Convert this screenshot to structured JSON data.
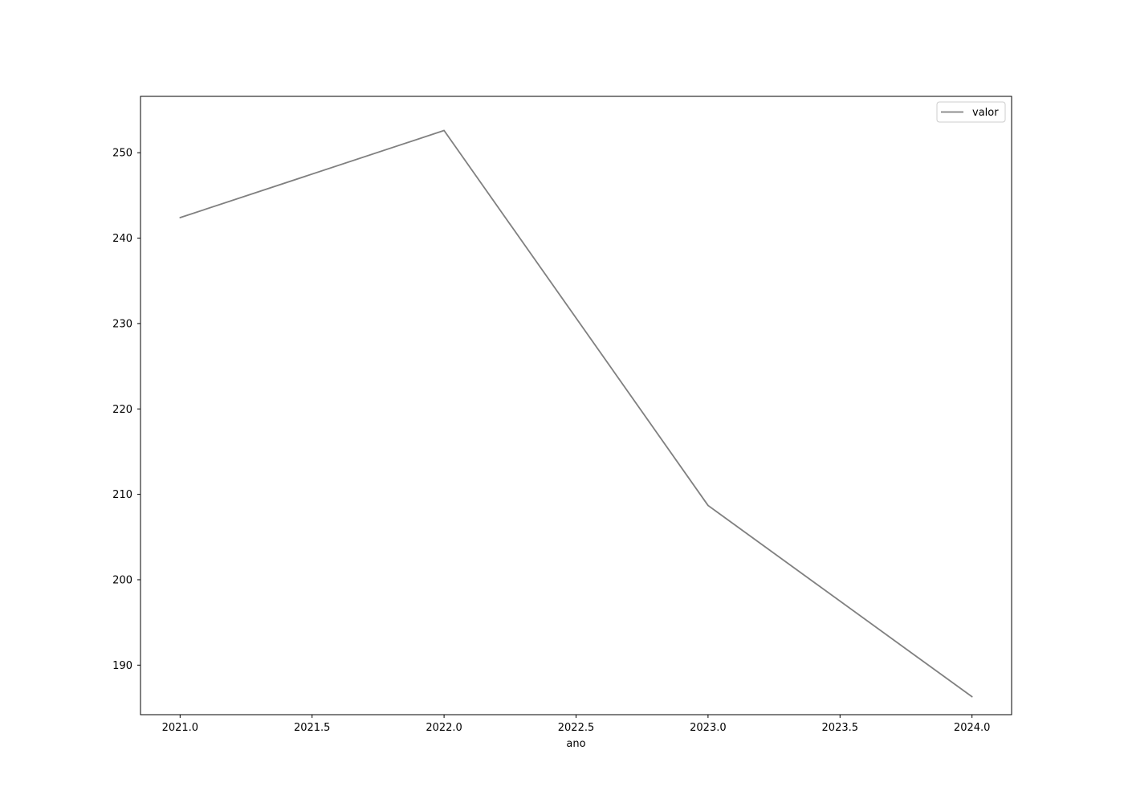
{
  "chart_data": {
    "type": "line",
    "x": [
      2021.0,
      2022.0,
      2023.0,
      2024.0
    ],
    "series": [
      {
        "name": "valor",
        "values": [
          242.4,
          252.6,
          208.7,
          186.3
        ],
        "color": "#808080"
      }
    ],
    "xlabel": "ano",
    "ylabel": "",
    "xlim": [
      2020.85,
      2024.15
    ],
    "ylim": [
      184.2,
      256.6
    ],
    "xticks": [
      2021.0,
      2021.5,
      2022.0,
      2022.5,
      2023.0,
      2023.5,
      2024.0
    ],
    "xtick_labels": [
      "2021.0",
      "2021.5",
      "2022.0",
      "2022.5",
      "2023.0",
      "2023.5",
      "2024.0"
    ],
    "yticks": [
      190,
      200,
      210,
      220,
      230,
      240,
      250
    ],
    "ytick_labels": [
      "190",
      "200",
      "210",
      "220",
      "230",
      "240",
      "250"
    ],
    "grid": false,
    "legend_position": "top-right"
  }
}
